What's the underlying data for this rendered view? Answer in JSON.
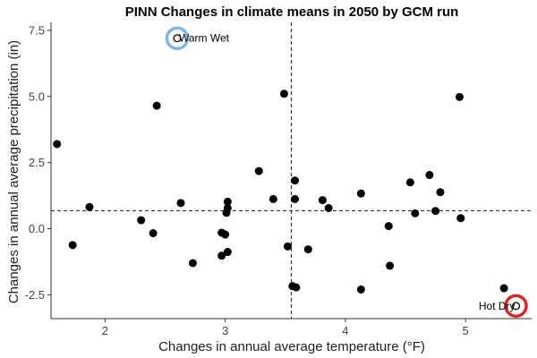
{
  "chart_data": {
    "type": "scatter",
    "title": "PINN Changes in climate means in 2050 by GCM run",
    "xlabel": "Changes in annual average temperature (°F)",
    "ylabel": "Changes in annual average precipitation (in)",
    "xlim": [
      1.55,
      5.55
    ],
    "ylim": [
      -3.4,
      7.8
    ],
    "x_ticks": [
      2,
      3,
      4,
      5
    ],
    "y_ticks": [
      -2.5,
      0.0,
      2.5,
      5.0,
      7.5
    ],
    "x_tick_labels": [
      "2",
      "3",
      "4",
      "5"
    ],
    "y_tick_labels": [
      "-2.5",
      "0.0",
      "2.5",
      "5.0",
      "7.5"
    ],
    "grid": false,
    "reference_lines": {
      "x": 3.55,
      "y": 0.68,
      "style": "dashed"
    },
    "points": [
      {
        "x": 1.6,
        "y": 3.2
      },
      {
        "x": 1.73,
        "y": -0.62
      },
      {
        "x": 1.87,
        "y": 0.82
      },
      {
        "x": 2.3,
        "y": 0.32
      },
      {
        "x": 2.4,
        "y": -0.17
      },
      {
        "x": 2.43,
        "y": 4.65
      },
      {
        "x": 2.6,
        "y": 7.2
      },
      {
        "x": 2.63,
        "y": 0.97
      },
      {
        "x": 2.73,
        "y": -1.3
      },
      {
        "x": 2.97,
        "y": -0.15
      },
      {
        "x": 2.97,
        "y": -1.02
      },
      {
        "x": 3.0,
        "y": -0.22
      },
      {
        "x": 3.01,
        "y": 0.6
      },
      {
        "x": 3.02,
        "y": 0.78
      },
      {
        "x": 3.02,
        "y": 1.02
      },
      {
        "x": 3.02,
        "y": -0.88
      },
      {
        "x": 3.28,
        "y": 2.18
      },
      {
        "x": 3.4,
        "y": 1.12
      },
      {
        "x": 3.49,
        "y": 5.1
      },
      {
        "x": 3.52,
        "y": -0.67
      },
      {
        "x": 3.56,
        "y": -2.17
      },
      {
        "x": 3.58,
        "y": 1.82
      },
      {
        "x": 3.58,
        "y": 1.12
      },
      {
        "x": 3.59,
        "y": -2.22
      },
      {
        "x": 3.69,
        "y": -0.78
      },
      {
        "x": 3.81,
        "y": 1.08
      },
      {
        "x": 3.86,
        "y": 0.78
      },
      {
        "x": 4.13,
        "y": 1.33
      },
      {
        "x": 4.13,
        "y": -2.3
      },
      {
        "x": 4.36,
        "y": 0.1
      },
      {
        "x": 4.37,
        "y": -1.4
      },
      {
        "x": 4.54,
        "y": 1.75
      },
      {
        "x": 4.58,
        "y": 0.58
      },
      {
        "x": 4.7,
        "y": 2.03
      },
      {
        "x": 4.75,
        "y": 0.67
      },
      {
        "x": 4.79,
        "y": 1.38
      },
      {
        "x": 4.95,
        "y": 4.98
      },
      {
        "x": 4.96,
        "y": 0.4
      },
      {
        "x": 5.32,
        "y": -2.25
      },
      {
        "x": 5.42,
        "y": -2.92
      }
    ],
    "annotations": [
      {
        "label": "Warm Wet",
        "x": 2.6,
        "y": 7.2,
        "color": "#7fb7e0"
      },
      {
        "label": "Hot Dry",
        "x": 5.42,
        "y": -2.92,
        "color": "#d42a2a"
      }
    ],
    "colors": {
      "points": "#000000",
      "axis": "#333333",
      "ref_line": "#333333"
    }
  }
}
